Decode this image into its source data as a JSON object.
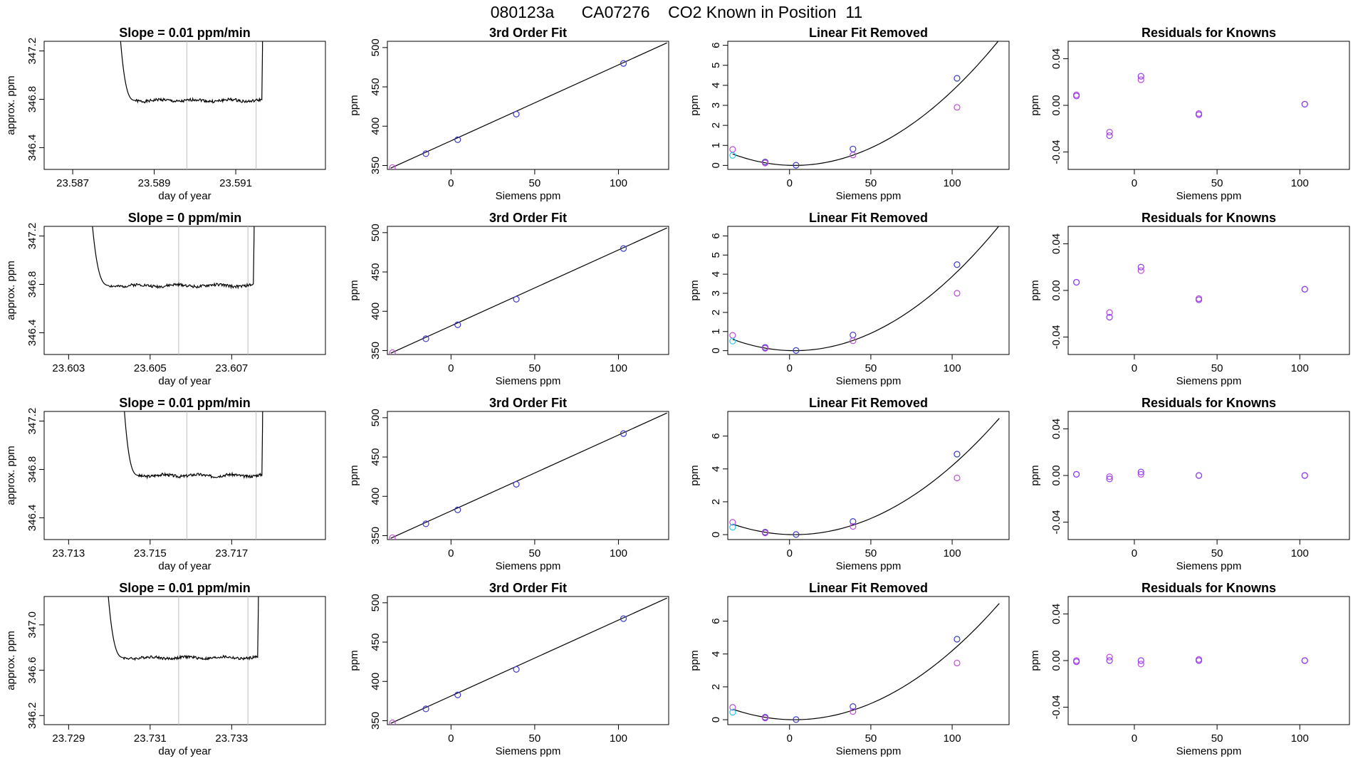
{
  "figure_title": "080123a      CA07276    CO2 Known in Position  11",
  "colors": {
    "axis": "#000000",
    "curve": "#000000",
    "vline": "#bdbdbd",
    "blue": "#3a3acd",
    "violet": "#c04ad8",
    "cyan": "#2ec8e8",
    "purple": "#8a3ff0"
  },
  "chart_data": [
    {
      "type": "line",
      "row": 0,
      "title": "Slope =  0.01  ppm/min",
      "xlabel": "day of year",
      "ylabel": "approx. ppm",
      "xlim": [
        23.5863,
        23.5932
      ],
      "ylim": [
        346.22,
        347.28
      ],
      "xticks": [
        23.587,
        23.589,
        23.591
      ],
      "xtick_labels": [
        "23.587",
        "23.589",
        "23.591"
      ],
      "yticks": [
        346.4,
        346.8,
        347.2
      ],
      "ytick_labels": [
        "346.4",
        "346.8",
        "347.2"
      ],
      "vlines": [
        23.5898,
        23.5915
      ],
      "trace": {
        "start": 23.5881,
        "end": 23.5917,
        "level": 346.79,
        "noise": 0.012,
        "seed": 1
      }
    },
    {
      "type": "line",
      "row": 0,
      "title": "3rd Order Fit",
      "xlabel": "Siemens ppm",
      "ylabel": "ppm",
      "xlim": [
        -38,
        130
      ],
      "ylim": [
        345,
        508
      ],
      "xticks": [
        0,
        50,
        100
      ],
      "xtick_labels": [
        "0",
        "50",
        "100"
      ],
      "yticks": [
        350,
        400,
        450,
        500
      ],
      "ytick_labels": [
        "350",
        "400",
        "450",
        "500"
      ],
      "fit": {
        "x0": -36,
        "x1": 129,
        "y0": 346.6,
        "y1": 506
      },
      "points": [
        {
          "x": -35,
          "y": 347.3,
          "c": "violet"
        },
        {
          "x": -15,
          "y": 365,
          "c": "blue"
        },
        {
          "x": 4,
          "y": 382.8,
          "c": "blue"
        },
        {
          "x": 39,
          "y": 415.3,
          "c": "blue"
        },
        {
          "x": 103,
          "y": 479.8,
          "c": "blue"
        }
      ]
    },
    {
      "type": "scatter",
      "row": 0,
      "title": "Linear Fit Removed",
      "xlabel": "Siemens ppm",
      "ylabel": "ppm",
      "xlim": [
        -38,
        135
      ],
      "ylim": [
        -0.2,
        6.2
      ],
      "xticks": [
        0,
        50,
        100
      ],
      "xtick_labels": [
        "0",
        "50",
        "100"
      ],
      "yticks": [
        0,
        1,
        2,
        3,
        4,
        5,
        6
      ],
      "ytick_labels": [
        "0",
        "1",
        "2",
        "3",
        "4",
        "5",
        "6"
      ],
      "curve": {
        "x0": -35,
        "x1": 129,
        "vx": 3,
        "a": 0.000395
      },
      "points": [
        {
          "x": -35,
          "y": 0.8,
          "c": "violet"
        },
        {
          "x": -35,
          "y": 0.5,
          "c": "cyan"
        },
        {
          "x": -15,
          "y": 0.17,
          "c": "blue"
        },
        {
          "x": -15,
          "y": 0.12,
          "c": "violet"
        },
        {
          "x": 4,
          "y": 0.01,
          "c": "blue"
        },
        {
          "x": 39,
          "y": 0.82,
          "c": "blue"
        },
        {
          "x": 39,
          "y": 0.52,
          "c": "violet"
        },
        {
          "x": 103,
          "y": 4.35,
          "c": "blue"
        },
        {
          "x": 103,
          "y": 2.9,
          "c": "violet"
        }
      ]
    },
    {
      "type": "scatter",
      "row": 0,
      "title": "Residuals for Knowns",
      "xlabel": "Siemens ppm",
      "ylabel": "ppm",
      "xlim": [
        -40,
        130
      ],
      "ylim": [
        -0.055,
        0.055
      ],
      "xticks": [
        0,
        50,
        100
      ],
      "xtick_labels": [
        "0",
        "50",
        "100"
      ],
      "yticks": [
        -0.04,
        0,
        0.04
      ],
      "ytick_labels": [
        "-0.04",
        "0.00",
        "0.04"
      ],
      "points": [
        {
          "x": -35,
          "y": 0.009,
          "c": "violet"
        },
        {
          "x": -35,
          "y": 0.008,
          "c": "purple"
        },
        {
          "x": -15,
          "y": -0.023,
          "c": "violet"
        },
        {
          "x": -15,
          "y": -0.026,
          "c": "purple"
        },
        {
          "x": 4,
          "y": 0.022,
          "c": "violet"
        },
        {
          "x": 4,
          "y": 0.025,
          "c": "purple"
        },
        {
          "x": 39,
          "y": -0.007,
          "c": "violet"
        },
        {
          "x": 39,
          "y": -0.008,
          "c": "purple"
        },
        {
          "x": 103,
          "y": 0.001,
          "c": "violet"
        },
        {
          "x": 103,
          "y": 0.001,
          "c": "purple"
        }
      ]
    },
    {
      "type": "line",
      "row": 1,
      "title": "Slope =  0  ppm/min",
      "xlabel": "day of year",
      "ylabel": "approx. ppm",
      "xlim": [
        23.6024,
        23.6093
      ],
      "ylim": [
        346.22,
        347.28
      ],
      "xticks": [
        23.603,
        23.605,
        23.607
      ],
      "xtick_labels": [
        "23.603",
        "23.605",
        "23.607"
      ],
      "yticks": [
        346.4,
        346.8,
        347.2
      ],
      "ytick_labels": [
        "346.4",
        "346.8",
        "347.2"
      ],
      "vlines": [
        23.6057,
        23.6074
      ],
      "trace": {
        "start": 23.6035,
        "end": 23.6076,
        "level": 346.79,
        "noise": 0.012,
        "seed": 2
      }
    },
    {
      "type": "line",
      "row": 1,
      "title": "3rd Order Fit",
      "xlabel": "Siemens ppm",
      "ylabel": "ppm",
      "xlim": [
        -38,
        130
      ],
      "ylim": [
        345,
        508
      ],
      "xticks": [
        0,
        50,
        100
      ],
      "xtick_labels": [
        "0",
        "50",
        "100"
      ],
      "yticks": [
        350,
        400,
        450,
        500
      ],
      "ytick_labels": [
        "350",
        "400",
        "450",
        "500"
      ],
      "fit": {
        "x0": -36,
        "x1": 129,
        "y0": 346.6,
        "y1": 506
      },
      "points": [
        {
          "x": -35,
          "y": 347.3,
          "c": "violet"
        },
        {
          "x": -15,
          "y": 365,
          "c": "blue"
        },
        {
          "x": 4,
          "y": 382.8,
          "c": "blue"
        },
        {
          "x": 39,
          "y": 415.3,
          "c": "blue"
        },
        {
          "x": 103,
          "y": 479.8,
          "c": "blue"
        }
      ]
    },
    {
      "type": "scatter",
      "row": 1,
      "title": "Linear Fit Removed",
      "xlabel": "Siemens ppm",
      "ylabel": "ppm",
      "xlim": [
        -38,
        135
      ],
      "ylim": [
        -0.2,
        6.5
      ],
      "xticks": [
        0,
        50,
        100
      ],
      "xtick_labels": [
        "0",
        "50",
        "100"
      ],
      "yticks": [
        0,
        1,
        2,
        3,
        4,
        5,
        6
      ],
      "ytick_labels": [
        "0",
        "1",
        "2",
        "3",
        "4",
        "5",
        "6"
      ],
      "curve": {
        "x0": -35,
        "x1": 129,
        "vx": 3,
        "a": 0.000412
      },
      "points": [
        {
          "x": -35,
          "y": 0.8,
          "c": "violet"
        },
        {
          "x": -35,
          "y": 0.5,
          "c": "cyan"
        },
        {
          "x": -15,
          "y": 0.17,
          "c": "blue"
        },
        {
          "x": -15,
          "y": 0.12,
          "c": "violet"
        },
        {
          "x": 4,
          "y": 0.01,
          "c": "blue"
        },
        {
          "x": 39,
          "y": 0.82,
          "c": "blue"
        },
        {
          "x": 39,
          "y": 0.52,
          "c": "violet"
        },
        {
          "x": 103,
          "y": 4.5,
          "c": "blue"
        },
        {
          "x": 103,
          "y": 3.0,
          "c": "violet"
        }
      ]
    },
    {
      "type": "scatter",
      "row": 1,
      "title": "Residuals for Knowns",
      "xlabel": "Siemens ppm",
      "ylabel": "ppm",
      "xlim": [
        -40,
        130
      ],
      "ylim": [
        -0.055,
        0.055
      ],
      "xticks": [
        0,
        50,
        100
      ],
      "xtick_labels": [
        "0",
        "50",
        "100"
      ],
      "yticks": [
        -0.04,
        0,
        0.04
      ],
      "ytick_labels": [
        "-0.04",
        "0.00",
        "0.04"
      ],
      "points": [
        {
          "x": -35,
          "y": 0.007,
          "c": "violet"
        },
        {
          "x": -35,
          "y": 0.007,
          "c": "purple"
        },
        {
          "x": -15,
          "y": -0.019,
          "c": "violet"
        },
        {
          "x": -15,
          "y": -0.023,
          "c": "purple"
        },
        {
          "x": 4,
          "y": 0.017,
          "c": "violet"
        },
        {
          "x": 4,
          "y": 0.02,
          "c": "purple"
        },
        {
          "x": 39,
          "y": -0.007,
          "c": "violet"
        },
        {
          "x": 39,
          "y": -0.008,
          "c": "purple"
        },
        {
          "x": 103,
          "y": 0.001,
          "c": "violet"
        },
        {
          "x": 103,
          "y": 0.001,
          "c": "purple"
        }
      ]
    },
    {
      "type": "line",
      "row": 2,
      "title": "Slope =  0.01  ppm/min",
      "xlabel": "day of year",
      "ylabel": "approx. ppm",
      "xlim": [
        23.7124,
        23.7193
      ],
      "ylim": [
        346.22,
        347.28
      ],
      "xticks": [
        23.713,
        23.715,
        23.717
      ],
      "xtick_labels": [
        "23.713",
        "23.715",
        "23.717"
      ],
      "yticks": [
        346.4,
        346.8,
        347.2
      ],
      "ytick_labels": [
        "346.4",
        "346.8",
        "347.2"
      ],
      "vlines": [
        23.7159,
        23.7176
      ],
      "trace": {
        "start": 23.7143,
        "end": 23.7178,
        "level": 346.75,
        "noise": 0.012,
        "seed": 3
      }
    },
    {
      "type": "line",
      "row": 2,
      "title": "3rd Order Fit",
      "xlabel": "Siemens ppm",
      "ylabel": "ppm",
      "xlim": [
        -38,
        130
      ],
      "ylim": [
        345,
        508
      ],
      "xticks": [
        0,
        50,
        100
      ],
      "xtick_labels": [
        "0",
        "50",
        "100"
      ],
      "yticks": [
        350,
        400,
        450,
        500
      ],
      "ytick_labels": [
        "350",
        "400",
        "450",
        "500"
      ],
      "fit": {
        "x0": -36,
        "x1": 129,
        "y0": 346.6,
        "y1": 506
      },
      "points": [
        {
          "x": -35,
          "y": 347.3,
          "c": "violet"
        },
        {
          "x": -15,
          "y": 365,
          "c": "blue"
        },
        {
          "x": 4,
          "y": 382.8,
          "c": "blue"
        },
        {
          "x": 39,
          "y": 415.3,
          "c": "blue"
        },
        {
          "x": 103,
          "y": 479.8,
          "c": "blue"
        }
      ]
    },
    {
      "type": "scatter",
      "row": 2,
      "title": "Linear Fit Removed",
      "xlabel": "Siemens ppm",
      "ylabel": "ppm",
      "xlim": [
        -38,
        135
      ],
      "ylim": [
        -0.3,
        7.5
      ],
      "xticks": [
        0,
        50,
        100
      ],
      "xtick_labels": [
        "0",
        "50",
        "100"
      ],
      "yticks": [
        0,
        2,
        4,
        6
      ],
      "ytick_labels": [
        "0",
        "2",
        "4",
        "6"
      ],
      "curve": {
        "x0": -35,
        "x1": 129,
        "vx": 3,
        "a": 0.000446
      },
      "points": [
        {
          "x": -35,
          "y": 0.75,
          "c": "violet"
        },
        {
          "x": -35,
          "y": 0.45,
          "c": "cyan"
        },
        {
          "x": -15,
          "y": 0.15,
          "c": "blue"
        },
        {
          "x": -15,
          "y": 0.1,
          "c": "violet"
        },
        {
          "x": 4,
          "y": 0.01,
          "c": "blue"
        },
        {
          "x": 39,
          "y": 0.8,
          "c": "blue"
        },
        {
          "x": 39,
          "y": 0.5,
          "c": "violet"
        },
        {
          "x": 103,
          "y": 4.9,
          "c": "blue"
        },
        {
          "x": 103,
          "y": 3.45,
          "c": "violet"
        }
      ]
    },
    {
      "type": "scatter",
      "row": 2,
      "title": "Residuals for Knowns",
      "xlabel": "Siemens ppm",
      "ylabel": "ppm",
      "xlim": [
        -40,
        130
      ],
      "ylim": [
        -0.055,
        0.055
      ],
      "xticks": [
        0,
        50,
        100
      ],
      "xtick_labels": [
        "0",
        "50",
        "100"
      ],
      "yticks": [
        -0.04,
        0,
        0.04
      ],
      "ytick_labels": [
        "-0.04",
        "0.00",
        "0.04"
      ],
      "points": [
        {
          "x": -35,
          "y": 0.001,
          "c": "violet"
        },
        {
          "x": -35,
          "y": 0.001,
          "c": "purple"
        },
        {
          "x": -15,
          "y": -0.001,
          "c": "violet"
        },
        {
          "x": -15,
          "y": -0.003,
          "c": "purple"
        },
        {
          "x": 4,
          "y": 0.001,
          "c": "violet"
        },
        {
          "x": 4,
          "y": 0.003,
          "c": "purple"
        },
        {
          "x": 39,
          "y": 0.0,
          "c": "violet"
        },
        {
          "x": 39,
          "y": 0.0,
          "c": "purple"
        },
        {
          "x": 103,
          "y": 0.0,
          "c": "violet"
        },
        {
          "x": 103,
          "y": 0.0,
          "c": "purple"
        }
      ]
    },
    {
      "type": "line",
      "row": 3,
      "title": "Slope =  0.01  ppm/min",
      "xlabel": "day of year",
      "ylabel": "approx. ppm",
      "xlim": [
        23.7284,
        23.7353
      ],
      "ylim": [
        346.12,
        347.25
      ],
      "xticks": [
        23.729,
        23.731,
        23.733
      ],
      "xtick_labels": [
        "23.729",
        "23.731",
        "23.733"
      ],
      "yticks": [
        346.2,
        346.6,
        347.0
      ],
      "ytick_labels": [
        "346.2",
        "346.6",
        "347.0"
      ],
      "vlines": [
        23.7317,
        23.7334
      ],
      "trace": {
        "start": 23.7299,
        "end": 23.7337,
        "level": 346.71,
        "noise": 0.012,
        "seed": 4
      }
    },
    {
      "type": "line",
      "row": 3,
      "title": "3rd Order Fit",
      "xlabel": "Siemens ppm",
      "ylabel": "ppm",
      "xlim": [
        -38,
        130
      ],
      "ylim": [
        345,
        508
      ],
      "xticks": [
        0,
        50,
        100
      ],
      "xtick_labels": [
        "0",
        "50",
        "100"
      ],
      "yticks": [
        350,
        400,
        450,
        500
      ],
      "ytick_labels": [
        "350",
        "400",
        "450",
        "500"
      ],
      "fit": {
        "x0": -36,
        "x1": 129,
        "y0": 346.6,
        "y1": 506
      },
      "points": [
        {
          "x": -35,
          "y": 347.3,
          "c": "violet"
        },
        {
          "x": -15,
          "y": 365,
          "c": "blue"
        },
        {
          "x": 4,
          "y": 382.8,
          "c": "blue"
        },
        {
          "x": 39,
          "y": 415.3,
          "c": "blue"
        },
        {
          "x": 103,
          "y": 479.8,
          "c": "blue"
        }
      ]
    },
    {
      "type": "scatter",
      "row": 3,
      "title": "Linear Fit Removed",
      "xlabel": "Siemens ppm",
      "ylabel": "ppm",
      "xlim": [
        -38,
        135
      ],
      "ylim": [
        -0.3,
        7.5
      ],
      "xticks": [
        0,
        50,
        100
      ],
      "xtick_labels": [
        "0",
        "50",
        "100"
      ],
      "yticks": [
        0,
        2,
        4,
        6
      ],
      "ytick_labels": [
        "0",
        "2",
        "4",
        "6"
      ],
      "curve": {
        "x0": -35,
        "x1": 129,
        "vx": 3,
        "a": 0.000446
      },
      "points": [
        {
          "x": -35,
          "y": 0.75,
          "c": "violet"
        },
        {
          "x": -35,
          "y": 0.45,
          "c": "cyan"
        },
        {
          "x": -15,
          "y": 0.15,
          "c": "blue"
        },
        {
          "x": -15,
          "y": 0.1,
          "c": "violet"
        },
        {
          "x": 4,
          "y": 0.01,
          "c": "blue"
        },
        {
          "x": 39,
          "y": 0.8,
          "c": "blue"
        },
        {
          "x": 39,
          "y": 0.5,
          "c": "violet"
        },
        {
          "x": 103,
          "y": 4.9,
          "c": "blue"
        },
        {
          "x": 103,
          "y": 3.45,
          "c": "violet"
        }
      ]
    },
    {
      "type": "scatter",
      "row": 3,
      "title": "Residuals for Knowns",
      "xlabel": "Siemens ppm",
      "ylabel": "ppm",
      "xlim": [
        -40,
        130
      ],
      "ylim": [
        -0.055,
        0.055
      ],
      "xticks": [
        0,
        50,
        100
      ],
      "xtick_labels": [
        "0",
        "50",
        "100"
      ],
      "yticks": [
        -0.04,
        0,
        0.04
      ],
      "ytick_labels": [
        "-0.04",
        "0.00",
        "0.04"
      ],
      "points": [
        {
          "x": -35,
          "y": 0.0,
          "c": "violet"
        },
        {
          "x": -35,
          "y": -0.001,
          "c": "purple"
        },
        {
          "x": -15,
          "y": 0.003,
          "c": "violet"
        },
        {
          "x": -15,
          "y": 0.0,
          "c": "purple"
        },
        {
          "x": 4,
          "y": -0.003,
          "c": "violet"
        },
        {
          "x": 4,
          "y": 0.0,
          "c": "purple"
        },
        {
          "x": 39,
          "y": 0.001,
          "c": "violet"
        },
        {
          "x": 39,
          "y": 0.0,
          "c": "purple"
        },
        {
          "x": 103,
          "y": 0.0,
          "c": "violet"
        },
        {
          "x": 103,
          "y": 0.0,
          "c": "purple"
        }
      ]
    }
  ]
}
